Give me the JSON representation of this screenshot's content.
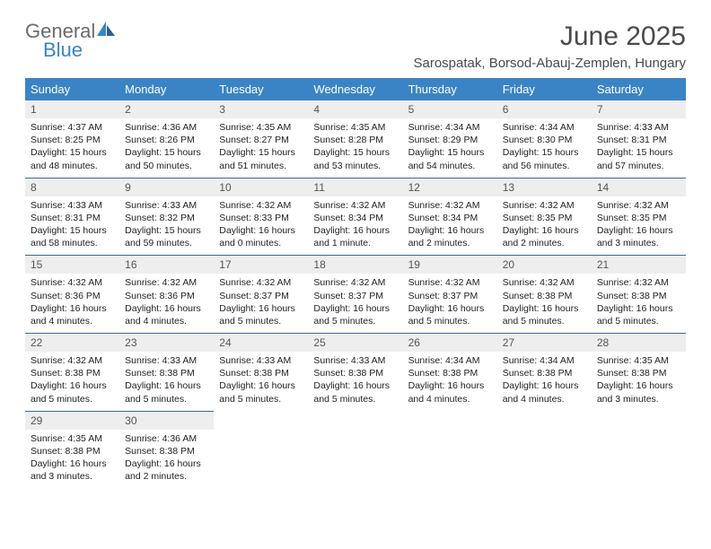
{
  "logo": {
    "general": "General",
    "blue": "Blue"
  },
  "title": "June 2025",
  "location": "Sarospatak, Borsod-Abauj-Zemplen, Hungary",
  "colors": {
    "header_bg": "#3a84c5",
    "header_text": "#ffffff",
    "daynum_bg": "#eeeeee",
    "border": "#3a6a9a",
    "logo_gray": "#6b6b6b",
    "logo_blue": "#3a84c5"
  },
  "weekdays": [
    "Sunday",
    "Monday",
    "Tuesday",
    "Wednesday",
    "Thursday",
    "Friday",
    "Saturday"
  ],
  "weeks": [
    [
      {
        "n": "1",
        "sr": "Sunrise: 4:37 AM",
        "ss": "Sunset: 8:25 PM",
        "dl": "Daylight: 15 hours and 48 minutes."
      },
      {
        "n": "2",
        "sr": "Sunrise: 4:36 AM",
        "ss": "Sunset: 8:26 PM",
        "dl": "Daylight: 15 hours and 50 minutes."
      },
      {
        "n": "3",
        "sr": "Sunrise: 4:35 AM",
        "ss": "Sunset: 8:27 PM",
        "dl": "Daylight: 15 hours and 51 minutes."
      },
      {
        "n": "4",
        "sr": "Sunrise: 4:35 AM",
        "ss": "Sunset: 8:28 PM",
        "dl": "Daylight: 15 hours and 53 minutes."
      },
      {
        "n": "5",
        "sr": "Sunrise: 4:34 AM",
        "ss": "Sunset: 8:29 PM",
        "dl": "Daylight: 15 hours and 54 minutes."
      },
      {
        "n": "6",
        "sr": "Sunrise: 4:34 AM",
        "ss": "Sunset: 8:30 PM",
        "dl": "Daylight: 15 hours and 56 minutes."
      },
      {
        "n": "7",
        "sr": "Sunrise: 4:33 AM",
        "ss": "Sunset: 8:31 PM",
        "dl": "Daylight: 15 hours and 57 minutes."
      }
    ],
    [
      {
        "n": "8",
        "sr": "Sunrise: 4:33 AM",
        "ss": "Sunset: 8:31 PM",
        "dl": "Daylight: 15 hours and 58 minutes."
      },
      {
        "n": "9",
        "sr": "Sunrise: 4:33 AM",
        "ss": "Sunset: 8:32 PM",
        "dl": "Daylight: 15 hours and 59 minutes."
      },
      {
        "n": "10",
        "sr": "Sunrise: 4:32 AM",
        "ss": "Sunset: 8:33 PM",
        "dl": "Daylight: 16 hours and 0 minutes."
      },
      {
        "n": "11",
        "sr": "Sunrise: 4:32 AM",
        "ss": "Sunset: 8:34 PM",
        "dl": "Daylight: 16 hours and 1 minute."
      },
      {
        "n": "12",
        "sr": "Sunrise: 4:32 AM",
        "ss": "Sunset: 8:34 PM",
        "dl": "Daylight: 16 hours and 2 minutes."
      },
      {
        "n": "13",
        "sr": "Sunrise: 4:32 AM",
        "ss": "Sunset: 8:35 PM",
        "dl": "Daylight: 16 hours and 2 minutes."
      },
      {
        "n": "14",
        "sr": "Sunrise: 4:32 AM",
        "ss": "Sunset: 8:35 PM",
        "dl": "Daylight: 16 hours and 3 minutes."
      }
    ],
    [
      {
        "n": "15",
        "sr": "Sunrise: 4:32 AM",
        "ss": "Sunset: 8:36 PM",
        "dl": "Daylight: 16 hours and 4 minutes."
      },
      {
        "n": "16",
        "sr": "Sunrise: 4:32 AM",
        "ss": "Sunset: 8:36 PM",
        "dl": "Daylight: 16 hours and 4 minutes."
      },
      {
        "n": "17",
        "sr": "Sunrise: 4:32 AM",
        "ss": "Sunset: 8:37 PM",
        "dl": "Daylight: 16 hours and 5 minutes."
      },
      {
        "n": "18",
        "sr": "Sunrise: 4:32 AM",
        "ss": "Sunset: 8:37 PM",
        "dl": "Daylight: 16 hours and 5 minutes."
      },
      {
        "n": "19",
        "sr": "Sunrise: 4:32 AM",
        "ss": "Sunset: 8:37 PM",
        "dl": "Daylight: 16 hours and 5 minutes."
      },
      {
        "n": "20",
        "sr": "Sunrise: 4:32 AM",
        "ss": "Sunset: 8:38 PM",
        "dl": "Daylight: 16 hours and 5 minutes."
      },
      {
        "n": "21",
        "sr": "Sunrise: 4:32 AM",
        "ss": "Sunset: 8:38 PM",
        "dl": "Daylight: 16 hours and 5 minutes."
      }
    ],
    [
      {
        "n": "22",
        "sr": "Sunrise: 4:32 AM",
        "ss": "Sunset: 8:38 PM",
        "dl": "Daylight: 16 hours and 5 minutes."
      },
      {
        "n": "23",
        "sr": "Sunrise: 4:33 AM",
        "ss": "Sunset: 8:38 PM",
        "dl": "Daylight: 16 hours and 5 minutes."
      },
      {
        "n": "24",
        "sr": "Sunrise: 4:33 AM",
        "ss": "Sunset: 8:38 PM",
        "dl": "Daylight: 16 hours and 5 minutes."
      },
      {
        "n": "25",
        "sr": "Sunrise: 4:33 AM",
        "ss": "Sunset: 8:38 PM",
        "dl": "Daylight: 16 hours and 5 minutes."
      },
      {
        "n": "26",
        "sr": "Sunrise: 4:34 AM",
        "ss": "Sunset: 8:38 PM",
        "dl": "Daylight: 16 hours and 4 minutes."
      },
      {
        "n": "27",
        "sr": "Sunrise: 4:34 AM",
        "ss": "Sunset: 8:38 PM",
        "dl": "Daylight: 16 hours and 4 minutes."
      },
      {
        "n": "28",
        "sr": "Sunrise: 4:35 AM",
        "ss": "Sunset: 8:38 PM",
        "dl": "Daylight: 16 hours and 3 minutes."
      }
    ],
    [
      {
        "n": "29",
        "sr": "Sunrise: 4:35 AM",
        "ss": "Sunset: 8:38 PM",
        "dl": "Daylight: 16 hours and 3 minutes."
      },
      {
        "n": "30",
        "sr": "Sunrise: 4:36 AM",
        "ss": "Sunset: 8:38 PM",
        "dl": "Daylight: 16 hours and 2 minutes."
      },
      null,
      null,
      null,
      null,
      null
    ]
  ]
}
